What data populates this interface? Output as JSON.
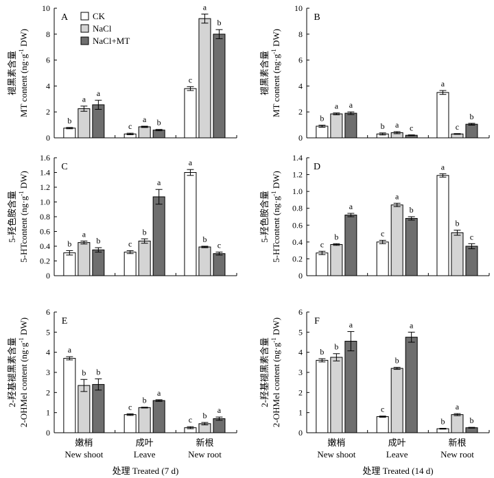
{
  "colors": {
    "CK": "#ffffff",
    "NaCl": "#d4d4d4",
    "NaCl+MT": "#6e6e6e",
    "stroke": "#000000"
  },
  "legend": [
    "CK",
    "NaCl",
    "NaCl+MT"
  ],
  "x_titles": [
    "处理 Treated (7 d)",
    "处理 Treated (14 d)"
  ],
  "ylabels": {
    "MT": {
      "cn": "褪黑素含量",
      "en_pre": "MT content (ng·g",
      "en_sup": "-1",
      "en_post": " DW)"
    },
    "5HT": {
      "cn": "5-羟色胺含量",
      "en_pre": "5-HTcontent (ng·g",
      "en_sup": "-1",
      "en_post": " DW)"
    },
    "2OH": {
      "cn": "2-羟基褪黑素含量",
      "en_pre": "2-OHMel content (ng·g",
      "en_sup": "-1",
      "en_post": " DW)"
    }
  },
  "chart_data": [
    {
      "panel": "A",
      "type": "bar",
      "ylabel_key": "MT",
      "categories": [
        [
          "嫩梢",
          "New shoot"
        ],
        [
          "成叶",
          "Leave"
        ],
        [
          "新根",
          "New root"
        ]
      ],
      "ylim": [
        0,
        10
      ],
      "yticks": [
        "0",
        "2",
        "4",
        "6",
        "8",
        "10"
      ],
      "show_legend": true,
      "x_title": null,
      "series": [
        {
          "name": "CK",
          "values": [
            0.75,
            0.3,
            3.8
          ],
          "errors": [
            0.05,
            0.06,
            0.15
          ],
          "labels": [
            "b",
            "c",
            "c"
          ]
        },
        {
          "name": "NaCl",
          "values": [
            2.25,
            0.85,
            9.2
          ],
          "errors": [
            0.2,
            0.05,
            0.35
          ],
          "labels": [
            "a",
            "a",
            "a"
          ]
        },
        {
          "name": "NaCl+MT",
          "values": [
            2.55,
            0.6,
            8.0
          ],
          "errors": [
            0.35,
            0.05,
            0.35
          ],
          "labels": [
            "a",
            "b",
            "b"
          ]
        }
      ]
    },
    {
      "panel": "B",
      "type": "bar",
      "ylabel_key": "MT",
      "categories": [
        [
          "嫩梢",
          "New shoot"
        ],
        [
          "成叶",
          "Leave"
        ],
        [
          "新根",
          "New root"
        ]
      ],
      "ylim": [
        0,
        10
      ],
      "yticks": [
        "0",
        "2",
        "4",
        "6",
        "8",
        "10"
      ],
      "show_legend": false,
      "x_title": null,
      "series": [
        {
          "name": "CK",
          "values": [
            0.9,
            0.3,
            3.5
          ],
          "errors": [
            0.08,
            0.08,
            0.15
          ],
          "labels": [
            "b",
            "b",
            "a"
          ]
        },
        {
          "name": "NaCl",
          "values": [
            1.85,
            0.4,
            0.3
          ],
          "errors": [
            0.07,
            0.08,
            0.03
          ],
          "labels": [
            "a",
            "a",
            "c"
          ]
        },
        {
          "name": "NaCl+MT",
          "values": [
            1.9,
            0.2,
            1.05
          ],
          "errors": [
            0.1,
            0.03,
            0.07
          ],
          "labels": [
            "a",
            "c",
            "b"
          ]
        }
      ]
    },
    {
      "panel": "C",
      "type": "bar",
      "ylabel_key": "5HT",
      "categories": [
        [
          "嫩梢",
          "New shoot"
        ],
        [
          "成叶",
          "Leave"
        ],
        [
          "新根",
          "New root"
        ]
      ],
      "ylim": [
        0,
        1.6
      ],
      "yticks": [
        "0",
        "0.2",
        "0.4",
        "0.6",
        "0.8",
        "1.0",
        "1.2",
        "1.4",
        "1.6"
      ],
      "show_legend": false,
      "x_title": null,
      "series": [
        {
          "name": "CK",
          "values": [
            0.31,
            0.32,
            1.4
          ],
          "errors": [
            0.03,
            0.02,
            0.04
          ],
          "labels": [
            "b",
            "c",
            "a"
          ]
        },
        {
          "name": "NaCl",
          "values": [
            0.45,
            0.47,
            0.39
          ],
          "errors": [
            0.02,
            0.03,
            0.01
          ],
          "labels": [
            "a",
            "b",
            "b"
          ]
        },
        {
          "name": "NaCl+MT",
          "values": [
            0.35,
            1.07,
            0.3
          ],
          "errors": [
            0.03,
            0.1,
            0.02
          ],
          "labels": [
            "b",
            "a",
            "c"
          ]
        }
      ]
    },
    {
      "panel": "D",
      "type": "bar",
      "ylabel_key": "5HT",
      "categories": [
        [
          "嫩梢",
          "New shoot"
        ],
        [
          "成叶",
          "Leave"
        ],
        [
          "新根",
          "New root"
        ]
      ],
      "ylim": [
        0,
        1.4
      ],
      "yticks": [
        "0",
        "0.2",
        "0.4",
        "0.6",
        "0.8",
        "1.0",
        "1.2",
        "1.4"
      ],
      "show_legend": false,
      "x_title": null,
      "series": [
        {
          "name": "CK",
          "values": [
            0.27,
            0.4,
            1.19
          ],
          "errors": [
            0.02,
            0.02,
            0.02
          ],
          "labels": [
            "c",
            "c",
            "a"
          ]
        },
        {
          "name": "NaCl",
          "values": [
            0.37,
            0.84,
            0.51
          ],
          "errors": [
            0.01,
            0.02,
            0.03
          ],
          "labels": [
            "b",
            "a",
            "b"
          ]
        },
        {
          "name": "NaCl+MT",
          "values": [
            0.72,
            0.68,
            0.35
          ],
          "errors": [
            0.02,
            0.02,
            0.03
          ],
          "labels": [
            "a",
            "b",
            "c"
          ]
        }
      ]
    },
    {
      "panel": "E",
      "type": "bar",
      "ylabel_key": "2OH",
      "categories": [
        [
          "嫩梢",
          "New shoot"
        ],
        [
          "成叶",
          "Leave"
        ],
        [
          "新根",
          "New root"
        ]
      ],
      "ylim": [
        0,
        6
      ],
      "yticks": [
        "0",
        "1",
        "2",
        "3",
        "4",
        "5",
        "6"
      ],
      "show_legend": false,
      "x_title": 0,
      "series": [
        {
          "name": "CK",
          "values": [
            3.7,
            0.9,
            0.25
          ],
          "errors": [
            0.08,
            0.04,
            0.05
          ],
          "labels": [
            "a",
            "c",
            "c"
          ]
        },
        {
          "name": "NaCl",
          "values": [
            2.35,
            1.25,
            0.45
          ],
          "errors": [
            0.3,
            0.02,
            0.06
          ],
          "labels": [
            "b",
            "b",
            "b"
          ]
        },
        {
          "name": "NaCl+MT",
          "values": [
            2.4,
            1.6,
            0.7
          ],
          "errors": [
            0.28,
            0.04,
            0.08
          ],
          "labels": [
            "b",
            "a",
            "a"
          ]
        }
      ]
    },
    {
      "panel": "F",
      "type": "bar",
      "ylabel_key": "2OH",
      "categories": [
        [
          "嫩梢",
          "New shoot"
        ],
        [
          "成叶",
          "Leave"
        ],
        [
          "新根",
          "New root"
        ]
      ],
      "ylim": [
        0,
        6
      ],
      "yticks": [
        "0",
        "1",
        "2",
        "3",
        "4",
        "5",
        "6"
      ],
      "show_legend": false,
      "x_title": 1,
      "series": [
        {
          "name": "CK",
          "values": [
            3.6,
            0.8,
            0.2
          ],
          "errors": [
            0.08,
            0.03,
            0.02
          ],
          "labels": [
            "b",
            "c",
            "b"
          ]
        },
        {
          "name": "NaCl",
          "values": [
            3.75,
            3.2,
            0.9
          ],
          "errors": [
            0.18,
            0.05,
            0.05
          ],
          "labels": [
            "b",
            "b",
            "a"
          ]
        },
        {
          "name": "NaCl+MT",
          "values": [
            4.55,
            4.75,
            0.25
          ],
          "errors": [
            0.48,
            0.25,
            0.02
          ],
          "labels": [
            "a",
            "a",
            "b"
          ]
        }
      ]
    }
  ]
}
